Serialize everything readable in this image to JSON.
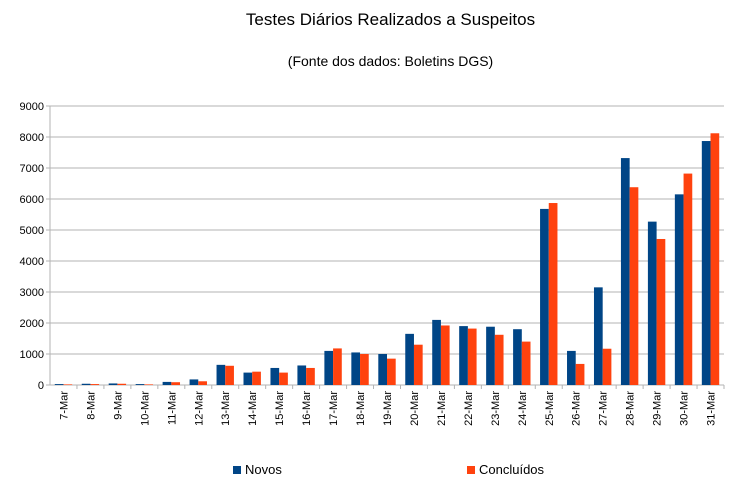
{
  "chart_data": {
    "type": "bar",
    "title": "Testes Diários Realizados a Suspeitos",
    "subtitle": "(Fonte dos dados: Boletins DGS)",
    "categories": [
      "7-Mar",
      "8-Mar",
      "9-Mar",
      "10-Mar",
      "11-Mar",
      "12-Mar",
      "13-Mar",
      "14-Mar",
      "15-Mar",
      "16-Mar",
      "17-Mar",
      "18-Mar",
      "19-Mar",
      "20-Mar",
      "21-Mar",
      "22-Mar",
      "23-Mar",
      "24-Mar",
      "25-Mar",
      "26-Mar",
      "27-Mar",
      "28-Mar",
      "29-Mar",
      "30-Mar",
      "31-Mar"
    ],
    "series": [
      {
        "name": "Novos",
        "color": "#004586",
        "values": [
          30,
          40,
          50,
          30,
          100,
          180,
          650,
          400,
          550,
          630,
          1100,
          1050,
          1000,
          1650,
          2100,
          1900,
          1880,
          1800,
          5680,
          1100,
          3150,
          7320,
          5270,
          6150,
          7870
        ]
      },
      {
        "name": "Concluídos",
        "color": "#ff420e",
        "values": [
          20,
          30,
          40,
          20,
          90,
          120,
          620,
          430,
          400,
          550,
          1180,
          1000,
          850,
          1300,
          1920,
          1820,
          1620,
          1400,
          5870,
          680,
          1170,
          6380,
          4710,
          6820,
          8120
        ]
      }
    ],
    "ylim": [
      0,
      9000
    ],
    "yticks": [
      0,
      1000,
      2000,
      3000,
      4000,
      5000,
      6000,
      7000,
      8000,
      9000
    ],
    "grid": true,
    "legend_position": "bottom"
  }
}
